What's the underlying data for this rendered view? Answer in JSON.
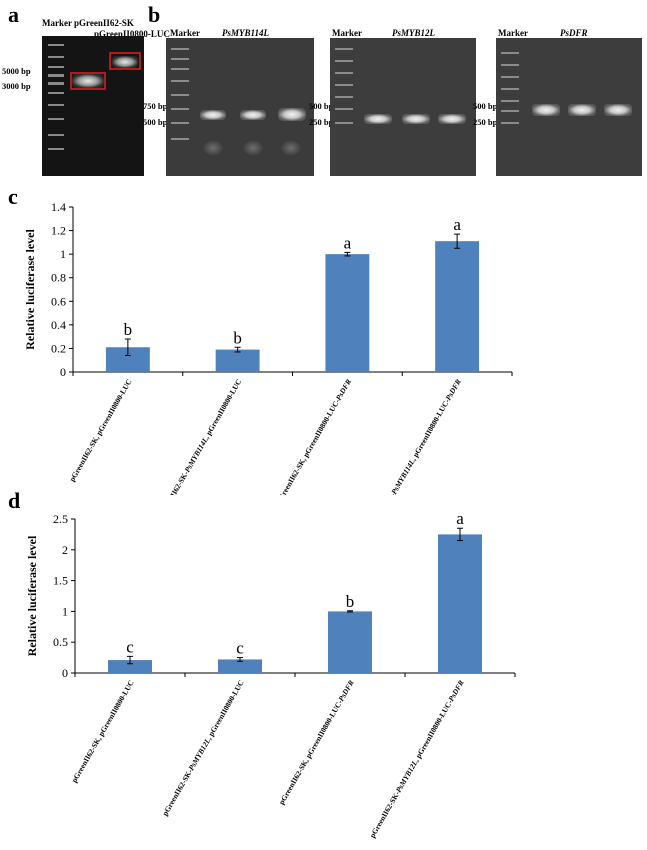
{
  "panel_a": {
    "letter": "a",
    "lane_labels": [
      "Marker",
      "pGreenII62-SK"
    ],
    "lane3_label": "pGreenII0800-LUC",
    "size_labels": [
      "5000 bp",
      "3000 bp"
    ]
  },
  "panel_b": {
    "letter": "b",
    "gels": [
      {
        "marker": "Marker",
        "gene": "PsMYB114L",
        "sizes": [
          "750 bp",
          "500 bp"
        ]
      },
      {
        "marker": "Marker",
        "gene": "PsMYB12L",
        "sizes": [
          "500 bp",
          "250 bp"
        ]
      },
      {
        "marker": "Marker",
        "gene": "PsDFR",
        "sizes": [
          "500 bp",
          "250 bp"
        ]
      }
    ]
  },
  "chart_data": [
    {
      "panel": "c",
      "type": "bar",
      "ylabel": "Relative luciferase level",
      "ylim": [
        0,
        1.4
      ],
      "yticks": [
        "0",
        "0.2",
        "0.4",
        "0.6",
        "0.8",
        "1",
        "1.2",
        "1.4"
      ],
      "categories": [
        "pGreenII62-SK, pGreenII0800-LUC",
        "pGreenII62-SK-PsMYB114L, pGreenII0800-LUC",
        "pGreenII62-SK, pGreenII0800-LUC-PsDFR",
        "pGreenII62-SK-PsMYB114L, pGreenII0800-LUC-PsDFR"
      ],
      "values": [
        0.21,
        0.19,
        1.0,
        1.11
      ],
      "errors": [
        0.07,
        0.02,
        0.015,
        0.06
      ],
      "significance": [
        "b",
        "b",
        "a",
        "a"
      ],
      "bar_color": "#4f81bd"
    },
    {
      "panel": "d",
      "type": "bar",
      "ylabel": "Relative luciferase level",
      "ylim": [
        0,
        2.5
      ],
      "yticks": [
        "0",
        "0.5",
        "1",
        "1.5",
        "2",
        "2.5"
      ],
      "categories": [
        "pGreenII62-SK, pGreenII0800-LUC",
        "pGreenII62-SK-PsMYB12L, pGreenII0800-LUC",
        "pGreenII62-SK, pGreenII0800-LUC-PsDFR",
        "pGreenII62-SK-PsMYB12L, pGreenII0800-LUC-PsDFR"
      ],
      "values": [
        0.21,
        0.22,
        1.0,
        2.25
      ],
      "errors": [
        0.06,
        0.03,
        0.01,
        0.1
      ],
      "significance": [
        "c",
        "c",
        "b",
        "a"
      ],
      "bar_color": "#4f81bd"
    }
  ]
}
